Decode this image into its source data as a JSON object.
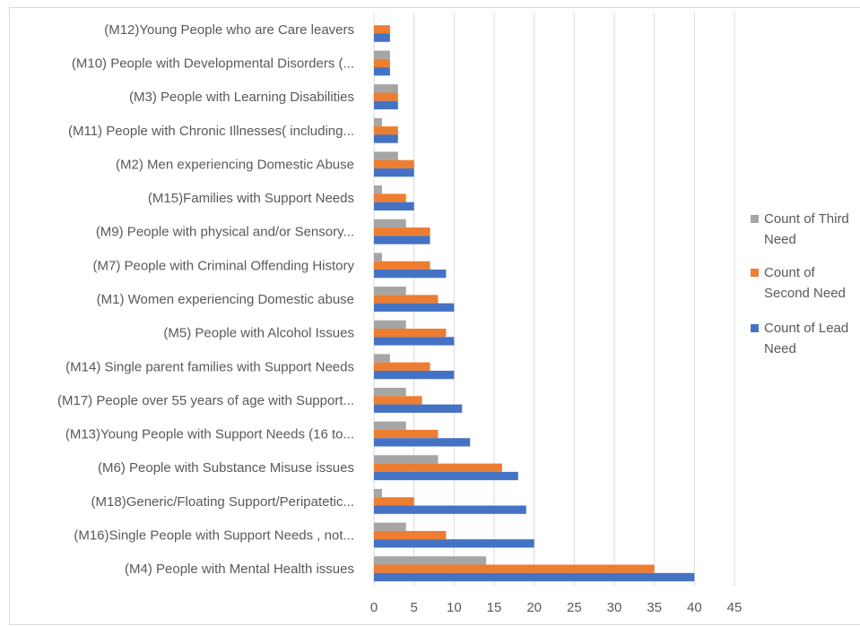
{
  "chart_data": {
    "type": "bar",
    "orientation": "horizontal",
    "categories": [
      "(M12)Young People who are Care leavers",
      "(M10) People with Developmental Disorders (...",
      "(M3) People with Learning Disabilities",
      "(M11) People with Chronic Illnesses( including...",
      "(M2) Men experiencing Domestic Abuse",
      "(M15)Families with Support Needs",
      "(M9) People with physical and/or Sensory...",
      "(M7) People with Criminal Offending History",
      "(M1) Women experiencing Domestic abuse",
      "(M5) People with Alcohol Issues",
      "(M14) Single parent families with Support Needs",
      "(M17) People over 55 years of age with Support...",
      "(M13)Young People with Support Needs (16 to...",
      "(M6) People with Substance Misuse issues",
      "(M18)Generic/Floating Support/Peripatetic...",
      "(M16)Single People with Support Needs , not...",
      "(M4) People with Mental Health issues"
    ],
    "series": [
      {
        "name": "Count of Third Need",
        "legend_lines": [
          "Count of Third",
          "Need"
        ],
        "color": "#a5a5a5",
        "values": [
          0,
          2,
          3,
          1,
          3,
          1,
          4,
          1,
          4,
          4,
          2,
          4,
          4,
          8,
          1,
          4,
          14
        ]
      },
      {
        "name": "Count of Second Need",
        "legend_lines": [
          "Count of",
          "Second Need"
        ],
        "color": "#ed7d31",
        "values": [
          2,
          2,
          3,
          3,
          5,
          4,
          7,
          7,
          8,
          9,
          7,
          6,
          8,
          16,
          5,
          9,
          35
        ]
      },
      {
        "name": "Count of Lead Need",
        "legend_lines": [
          "Count of Lead",
          "Need"
        ],
        "color": "#4472c4",
        "values": [
          2,
          2,
          3,
          3,
          5,
          5,
          7,
          9,
          10,
          10,
          10,
          11,
          12,
          18,
          19,
          20,
          40
        ]
      }
    ],
    "xlim": [
      0,
      45
    ],
    "xticks": [
      "0",
      "5",
      "10",
      "15",
      "20",
      "25",
      "30",
      "35",
      "40",
      "45"
    ],
    "grid": true,
    "legend_position": "right",
    "xlabel": "",
    "ylabel": "",
    "title": ""
  }
}
